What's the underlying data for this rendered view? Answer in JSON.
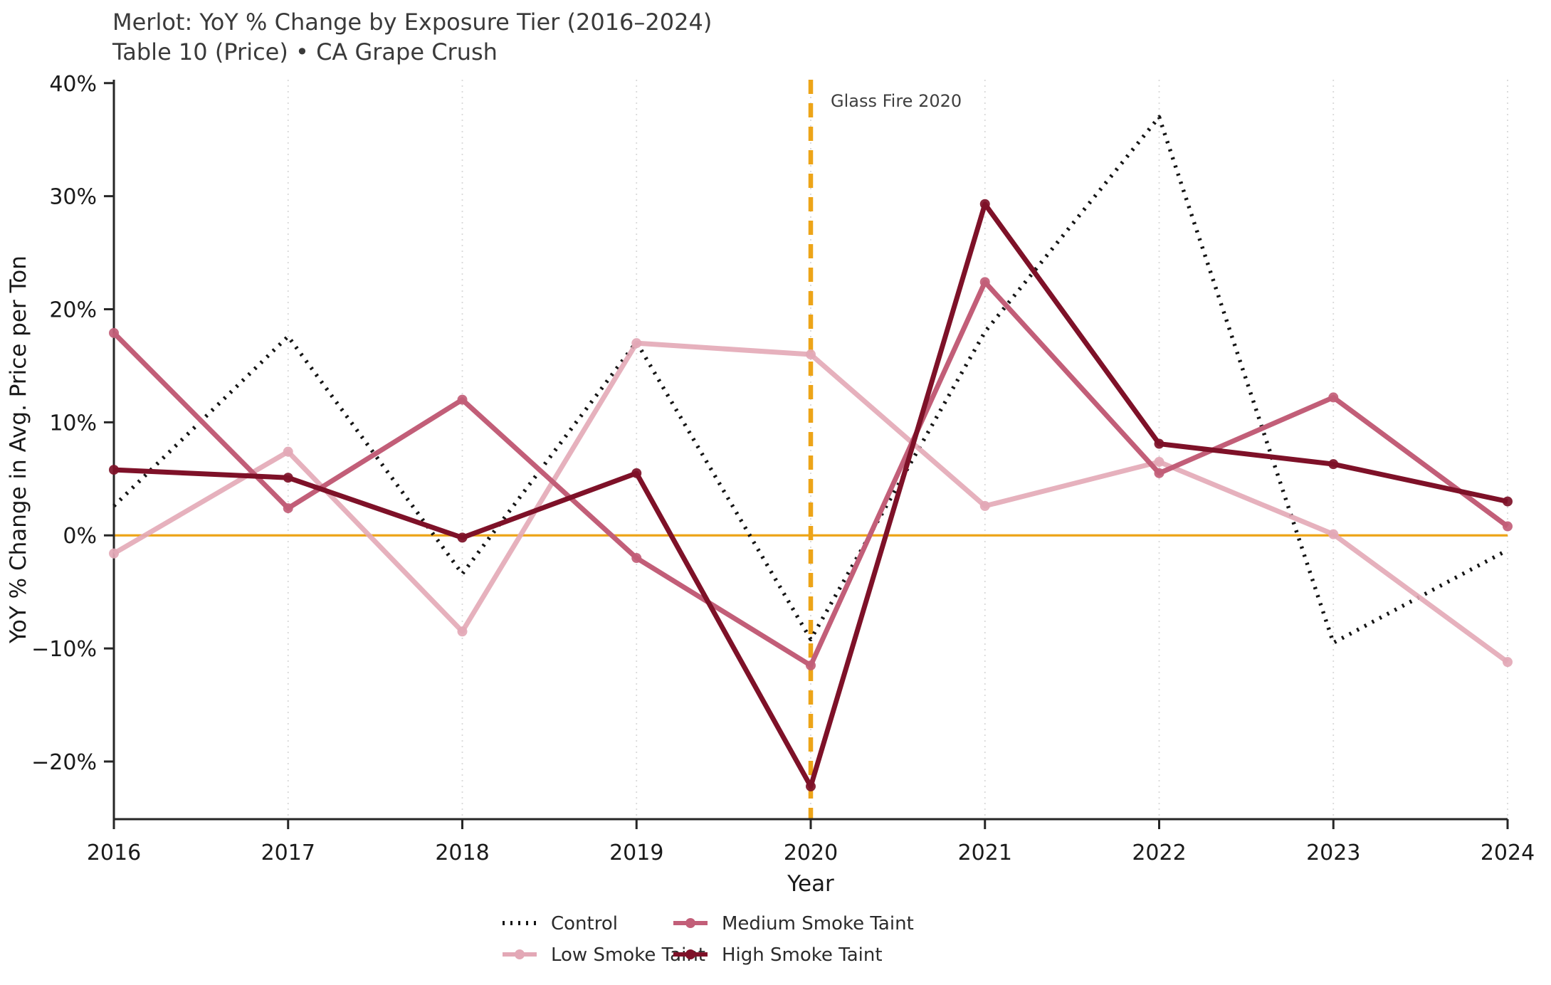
{
  "page": {
    "background": "#ffffff"
  },
  "chart_data": {
    "type": "line",
    "title": "Merlot: YoY % Change by Exposure Tier (2016–2024)",
    "subtitle": "Table 10 (Price) • CA Grape Crush",
    "xlabel": "Year",
    "ylabel": "YoY % Change in Avg. Price per Ton",
    "categories": [
      "2016",
      "2017",
      "2018",
      "2019",
      "2020",
      "2021",
      "2022",
      "2023",
      "2024"
    ],
    "ylim": [
      -25.1,
      40.3
    ],
    "yticks": {
      "values": [
        40,
        30,
        20,
        10,
        0,
        -10,
        -20
      ],
      "labels": [
        "40%",
        "30%",
        "20%",
        "10%",
        "0%",
        "−10%",
        "−20%"
      ]
    },
    "grid": {
      "vertical": true,
      "horizontal": false,
      "style": "dotted",
      "color": "#d9d9d9"
    },
    "zero_line": {
      "value": 0,
      "color": "#EDA418",
      "style": "solid"
    },
    "event_line": {
      "category": "2020",
      "label": "Glass Fire 2020",
      "color": "#EDA418",
      "style": "dashed"
    },
    "series": [
      {
        "name": "Control",
        "color": "#151515",
        "line_style": "dotted",
        "markers": false,
        "values": [
          2.6,
          17.6,
          -3.4,
          17.1,
          -9.2,
          18.0,
          37.0,
          -9.5,
          -1.3
        ]
      },
      {
        "name": "Low Smoke Taint",
        "color": "#E3A8B6",
        "line_style": "solid",
        "markers": true,
        "values": [
          -1.6,
          7.4,
          -8.5,
          17.0,
          16.0,
          2.6,
          6.5,
          0.1,
          -11.2
        ]
      },
      {
        "name": "Medium Smoke Taint",
        "color": "#C25E78",
        "line_style": "solid",
        "markers": true,
        "values": [
          17.9,
          2.4,
          12.0,
          -2.0,
          -11.5,
          22.4,
          5.5,
          12.2,
          0.8
        ]
      },
      {
        "name": "High Smoke Taint",
        "color": "#7E1128",
        "line_style": "solid",
        "markers": true,
        "values": [
          5.8,
          5.1,
          -0.2,
          5.5,
          -22.2,
          29.3,
          8.1,
          6.3,
          3.0
        ]
      }
    ],
    "legend": {
      "position": "bottom-center",
      "columns": [
        [
          "Control",
          "Low Smoke Taint"
        ],
        [
          "Medium Smoke Taint",
          "High Smoke Taint"
        ]
      ]
    }
  }
}
